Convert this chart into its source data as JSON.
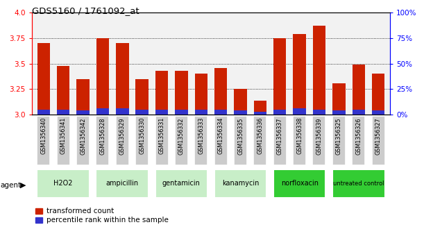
{
  "title": "GDS5160 / 1761092_at",
  "samples": [
    "GSM1356340",
    "GSM1356341",
    "GSM1356342",
    "GSM1356328",
    "GSM1356329",
    "GSM1356330",
    "GSM1356331",
    "GSM1356332",
    "GSM1356333",
    "GSM1356334",
    "GSM1356335",
    "GSM1356336",
    "GSM1356337",
    "GSM1356338",
    "GSM1356339",
    "GSM1356325",
    "GSM1356326",
    "GSM1356327"
  ],
  "transformed_count": [
    3.7,
    3.48,
    3.35,
    3.75,
    3.7,
    3.35,
    3.43,
    3.43,
    3.4,
    3.46,
    3.25,
    3.14,
    3.75,
    3.79,
    3.87,
    3.31,
    3.49,
    3.4
  ],
  "percentile_rank": [
    5.0,
    5.0,
    4.0,
    6.0,
    6.0,
    5.0,
    5.0,
    5.0,
    5.0,
    5.0,
    4.0,
    3.0,
    5.0,
    6.0,
    5.0,
    4.0,
    5.0,
    4.0
  ],
  "agents": [
    {
      "label": "H2O2",
      "start": 0,
      "end": 3,
      "bright": false
    },
    {
      "label": "ampicillin",
      "start": 3,
      "end": 6,
      "bright": false
    },
    {
      "label": "gentamicin",
      "start": 6,
      "end": 9,
      "bright": false
    },
    {
      "label": "kanamycin",
      "start": 9,
      "end": 12,
      "bright": false
    },
    {
      "label": "norfloxacin",
      "start": 12,
      "end": 15,
      "bright": true
    },
    {
      "label": "untreated control",
      "start": 15,
      "end": 18,
      "bright": true
    }
  ],
  "bar_color": "#cc2200",
  "blue_color": "#3333cc",
  "light_green": "#c8eec8",
  "bright_green": "#33cc33",
  "gray_box": "#cccccc",
  "ylim_left": [
    3.0,
    4.0
  ],
  "ylim_right": [
    0,
    100
  ],
  "yticks_left": [
    3.0,
    3.25,
    3.5,
    3.75,
    4.0
  ],
  "yticks_right": [
    0,
    25,
    50,
    75,
    100
  ],
  "ytick_labels_right": [
    "0%",
    "25%",
    "50%",
    "75%",
    "100%"
  ],
  "grid_lines": [
    3.25,
    3.5,
    3.75
  ],
  "bar_width": 0.65,
  "legend_red_label": "transformed count",
  "legend_blue_label": "percentile rank within the sample"
}
